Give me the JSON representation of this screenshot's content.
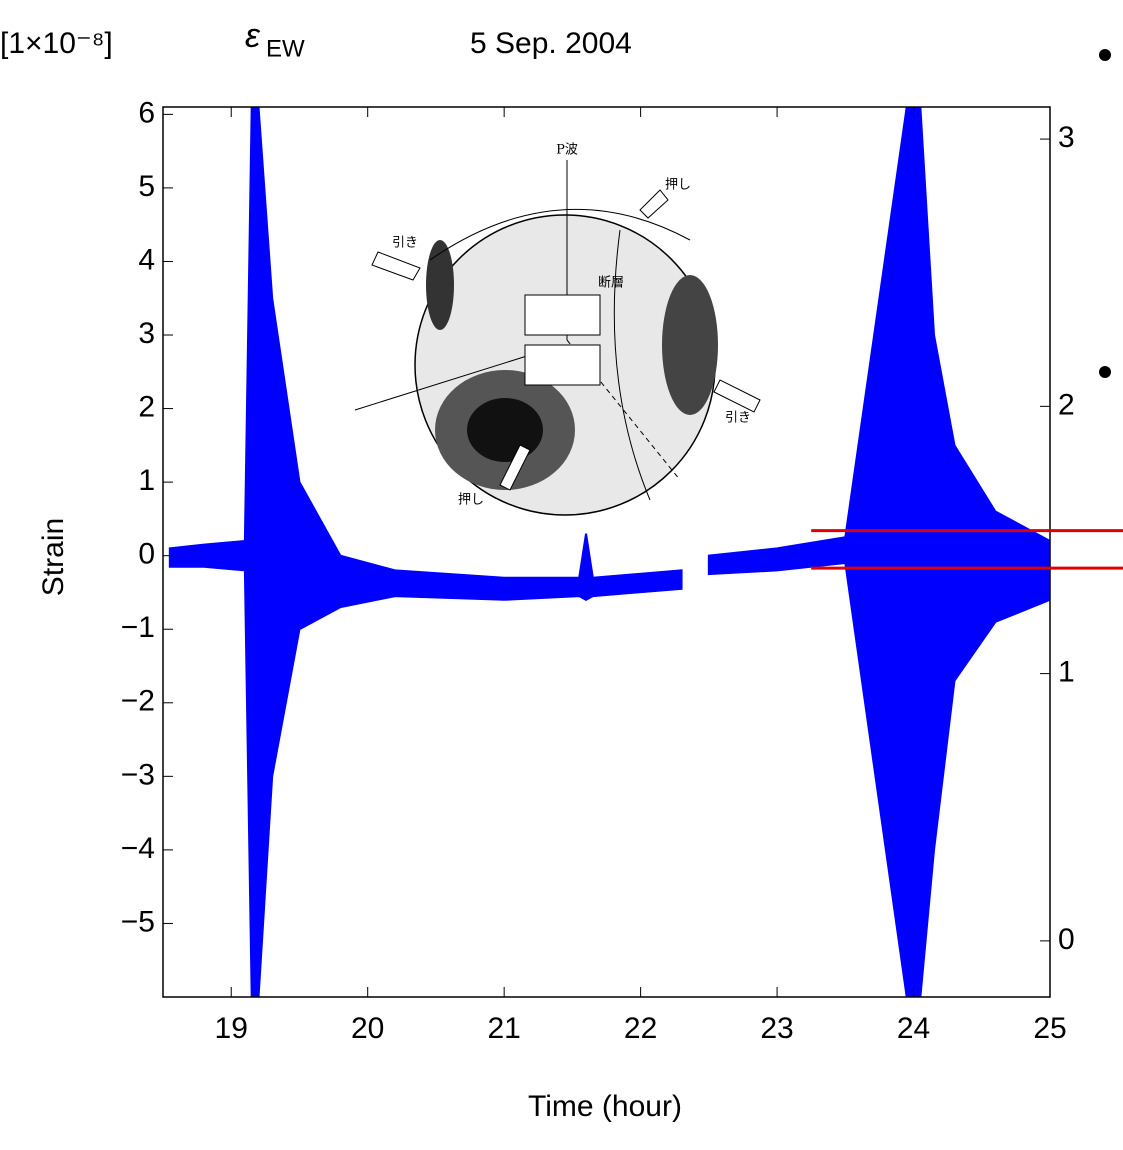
{
  "chart_data": {
    "type": "band",
    "unit_label": "[1×10⁻⁸]",
    "symbol": "ε",
    "symbol_sub": "EW",
    "title": "5 Sep. 2004",
    "ylabel": "Strain",
    "xlabel": "Time  (hour)",
    "x": [
      18.55,
      18.8,
      19.1,
      19.15,
      19.2,
      19.3,
      19.5,
      19.8,
      20.2,
      21,
      21.55,
      21.6,
      21.65,
      22.3,
      22.4,
      22.5,
      23,
      23.5,
      23.95,
      24.05,
      24.15,
      24.3,
      24.6,
      25
    ],
    "upper": [
      0.1,
      0.15,
      0.2,
      6.1,
      6.1,
      3.5,
      1.0,
      0.0,
      -0.2,
      -0.3,
      -0.3,
      0.3,
      -0.3,
      -0.2,
      null,
      0.0,
      0.1,
      0.25,
      6.1,
      6.1,
      3,
      1.5,
      0.6,
      0.2
    ],
    "lower": [
      -0.15,
      -0.15,
      -0.2,
      -6,
      -6,
      -3,
      -1,
      -0.7,
      -0.55,
      -0.6,
      -0.55,
      -0.6,
      -0.55,
      -0.45,
      null,
      -0.25,
      -0.2,
      -0.1,
      -6,
      -6,
      -4,
      -1.7,
      -0.9,
      -0.6
    ],
    "color": "#0000ff",
    "xlim": [
      18.5,
      25
    ],
    "xticks": [
      19,
      20,
      21,
      22,
      23,
      24,
      25
    ],
    "ylim": [
      -6,
      6.1
    ],
    "yticks": [
      6,
      5,
      4,
      3,
      2,
      1,
      0,
      {
        "value": -1,
        "label": "−1"
      },
      {
        "value": -2,
        "label": "−2"
      },
      {
        "value": -3,
        "label": "−3"
      },
      {
        "value": -4,
        "label": "−4"
      },
      {
        "value": -5,
        "label": "−5"
      }
    ],
    "y2lim": [
      -0.21,
      3.12
    ],
    "y2ticks": [
      0,
      1,
      2,
      3
    ],
    "hlines": {
      "values": [
        0.34,
        -0.17
      ],
      "color": "#e00000",
      "from": 23.25
    },
    "annotations": [
      "P波",
      "押し",
      "引き",
      "断層",
      "引き",
      "押し"
    ]
  }
}
